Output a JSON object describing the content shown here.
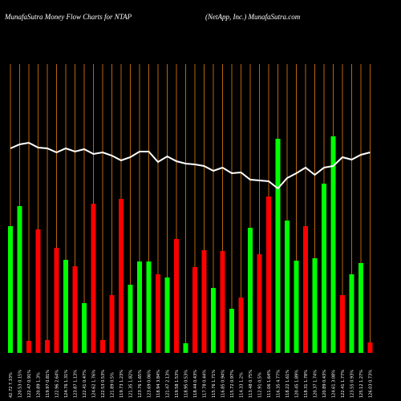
{
  "chart_data": {
    "type": "bar",
    "title": "MunafaSutra  Money Flow  Charts for NTAP",
    "subtitle": "(NetApp,  Inc.) MunafaSutra.com",
    "categories": [
      "42.72 7.33%",
      "120.53 0.15%",
      "122.47 0.91%",
      "120.89 1.3%",
      "119.97 0.81%",
      "122.96 2.64%",
      "124.76 1.31%",
      "123.87 1.13%",
      "122.41 0.47%",
      "124.62 1.76%",
      "122.53 0.53%",
      "121.89 0.5%",
      "119.73 1.23%",
      "121.35 1.82%",
      "123.76 1.65%",
      "123.69 0.06%",
      "118.94 3.84%",
      "121.47 2.13%",
      "119.58 1.53%",
      "118.95 0.53%",
      "118.44 0.43%",
      "117.78 0.44%",
      "115.76 1.71%",
      "116.85 0.94%",
      "115.72 0.97%",
      "114.33 1.2%",
      "113.48 0.75%",
      "112.91 0.5%",
      "111.06 1.64%",
      "116.35 4.77%",
      "118.22 1.61%",
      "120.45 1.89%",
      "118.31 1.78%",
      "120.37 1.74%",
      "120.89 0.43%",
      "124.61 3.08%",
      "122.41 1.77%",
      "123.55 0.93%",
      "125.12 1.27%",
      "126.03 0.73%"
    ],
    "values": [
      158,
      183,
      15,
      154,
      16,
      131,
      116,
      108,
      62,
      186,
      16,
      72,
      192,
      85,
      114,
      114,
      98,
      94,
      142,
      12,
      107,
      128,
      81,
      127,
      55,
      69,
      156,
      123,
      195,
      267,
      165,
      115,
      158,
      118,
      211,
      270,
      72,
      98,
      112,
      13
    ],
    "colors": [
      "#00ff00",
      "#00ff00",
      "#ff0000",
      "#ff0000",
      "#ff0000",
      "#ff0000",
      "#00ff00",
      "#ff0000",
      "#00ff00",
      "#ff0000",
      "#ff0000",
      "#ff0000",
      "#ff0000",
      "#00ff00",
      "#00ff00",
      "#00ff00",
      "#ff0000",
      "#00ff00",
      "#ff0000",
      "#00ff00",
      "#ff0000",
      "#ff0000",
      "#00ff00",
      "#ff0000",
      "#00ff00",
      "#ff0000",
      "#00ff00",
      "#ff0000",
      "#ff0000",
      "#00ff00",
      "#00ff00",
      "#00ff00",
      "#ff0000",
      "#00ff00",
      "#00ff00",
      "#00ff00",
      "#ff0000",
      "#00ff00",
      "#00ff00",
      "#ff0000"
    ],
    "line": {
      "color": "#ffffff",
      "values": [
        255,
        260,
        262,
        256,
        255,
        250,
        255,
        251,
        254,
        248,
        250,
        246,
        240,
        244,
        251,
        251,
        238,
        245,
        239,
        236,
        235,
        233,
        227,
        231,
        224,
        225,
        216,
        215,
        214,
        205,
        218,
        224,
        231,
        222,
        231,
        233,
        244,
        241,
        247,
        250
      ]
    },
    "grid_color": "#b8650a",
    "ylim": [
      0,
      360
    ]
  }
}
